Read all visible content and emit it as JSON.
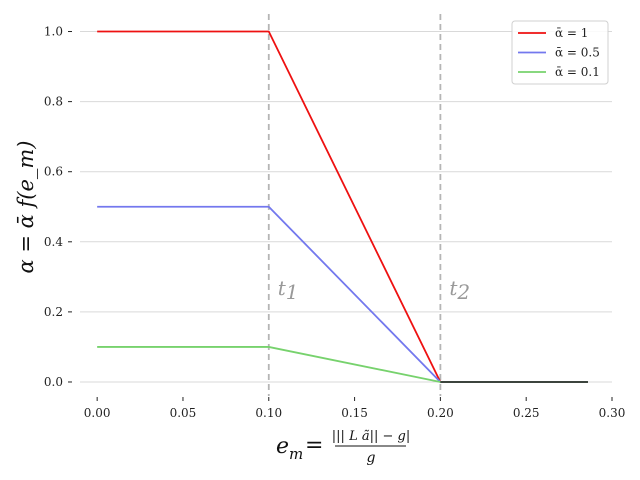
{
  "chart_data": {
    "type": "line",
    "xlabel": "e_m = (||^L ã|| − g) / g",
    "xlabel_parts": {
      "main": "e",
      "sub": "m",
      "eq": "=",
      "num": "||| L ã|| − g|",
      "den": "g"
    },
    "ylabel": "α = ᾱ f(e_m)",
    "xlim": [
      -0.01,
      0.3
    ],
    "ylim": [
      -0.04,
      1.05
    ],
    "xticks": [
      0.0,
      0.05,
      0.1,
      0.15,
      0.2,
      0.25,
      0.3
    ],
    "xtick_labels": [
      "0.00",
      "0.05",
      "0.10",
      "0.15",
      "0.20",
      "0.25",
      "0.30"
    ],
    "yticks": [
      0.0,
      0.2,
      0.4,
      0.6,
      0.8,
      1.0
    ],
    "ytick_labels": [
      "0.0",
      "0.2",
      "0.4",
      "0.6",
      "0.8",
      "1.0"
    ],
    "grid": "horizontal",
    "legend_position": "top-right",
    "vlines": [
      {
        "x": 0.1,
        "label": "t",
        "sub": "1"
      },
      {
        "x": 0.2,
        "label": "t",
        "sub": "2"
      }
    ],
    "series": [
      {
        "name": "ᾱ = 1",
        "color": "#ee1111",
        "x": [
          0.0,
          0.1,
          0.2,
          0.286
        ],
        "y": [
          1.0,
          1.0,
          0.0,
          0.0
        ]
      },
      {
        "name": "ᾱ = 0.5",
        "color": "#7378ee",
        "x": [
          0.0,
          0.1,
          0.2,
          0.286
        ],
        "y": [
          0.5,
          0.5,
          0.0,
          0.0
        ]
      },
      {
        "name": "ᾱ = 0.1",
        "color": "#77d26d",
        "x": [
          0.0,
          0.1,
          0.2,
          0.286
        ],
        "y": [
          0.1,
          0.1,
          0.0,
          0.0
        ]
      }
    ],
    "overlay_series": {
      "color": "#333333",
      "x": [
        0.2,
        0.286
      ],
      "y": [
        0.0,
        0.0
      ]
    }
  }
}
